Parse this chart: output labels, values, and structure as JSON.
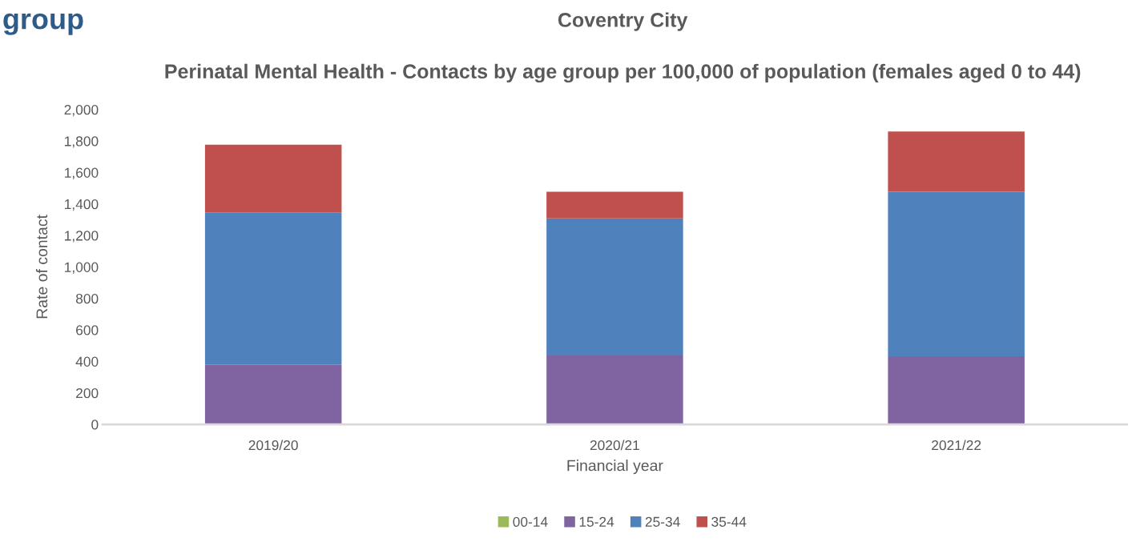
{
  "chart_data": {
    "type": "bar",
    "stacked": true,
    "title": "Coventry City",
    "subtitle": "Perinatal Mental Health - Contacts by age group per 100,000 of population (females aged 0 to 44)",
    "xlabel": "Financial year",
    "ylabel": "Rate of contact",
    "categories": [
      "2019/20",
      "2020/21",
      "2021/22"
    ],
    "series": [
      {
        "name": "00-14",
        "color": "#9bbb59",
        "values": [
          0,
          0,
          0
        ]
      },
      {
        "name": "15-24",
        "color": "#8064a2",
        "values": [
          378,
          438,
          433
        ]
      },
      {
        "name": "25-34",
        "color": "#4f81bd",
        "values": [
          969,
          870,
          1045
        ]
      },
      {
        "name": "35-44",
        "color": "#c0504d",
        "values": [
          429,
          170,
          382
        ]
      }
    ],
    "ylim": [
      0,
      2000
    ],
    "yticks": [
      {
        "value": 0,
        "label": "0"
      },
      {
        "value": 200,
        "label": "200"
      },
      {
        "value": 400,
        "label": "400"
      },
      {
        "value": 600,
        "label": "600"
      },
      {
        "value": 800,
        "label": "800"
      },
      {
        "value": 1000,
        "label": "1,000"
      },
      {
        "value": 1200,
        "label": "1,200"
      },
      {
        "value": 1400,
        "label": "1,400"
      },
      {
        "value": 1600,
        "label": "1,600"
      },
      {
        "value": 1800,
        "label": "1,800"
      },
      {
        "value": 2000,
        "label": "2,000"
      }
    ],
    "grid": false,
    "legend": "bottom",
    "annotations": [
      "group"
    ]
  }
}
